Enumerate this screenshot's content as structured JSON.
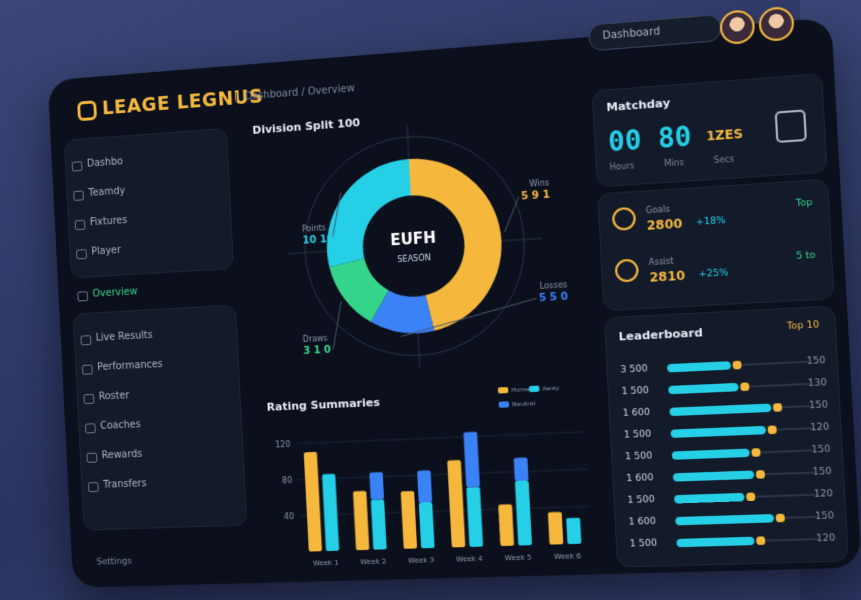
{
  "header": {
    "logo": "LEAGE LEGNUS",
    "breadcrumb": "Dashboard / Overview",
    "search": "Dashboard"
  },
  "sidebar": {
    "items": [
      "Dashbo",
      "Teamdy",
      "Fixtures",
      "Player",
      "Overview",
      "Live Results",
      "Performances",
      "Roster",
      "Coaches",
      "Rewards",
      "Transfers"
    ],
    "footer": "Settings"
  },
  "donut": {
    "title": "Division Split 100",
    "center": "EUFH",
    "center_sub": "SEASON",
    "values": [
      47,
      12,
      13,
      28
    ],
    "colors": [
      "#f5b83d",
      "#3b82f6",
      "#34d58a",
      "#25cfe6"
    ],
    "callouts": [
      "5 9 1",
      "5 5 0",
      "3 1 0",
      "10 10"
    ],
    "callout_captions": [
      "Wins",
      "Losses",
      "Draws",
      "Points"
    ]
  },
  "bars": {
    "title": "Rating Summaries",
    "categories": [
      "Week 1",
      "Week 2",
      "Week 3",
      "Week 4",
      "Week 5",
      "Week 6"
    ],
    "series": [
      {
        "name": "Home",
        "color": "#f5b83d",
        "values": [
          110,
          65,
          63,
          95,
          45,
          35
        ]
      },
      {
        "name": "Away",
        "color": "#25cfe6",
        "values": [
          85,
          55,
          50,
          65,
          70,
          28
        ]
      },
      {
        "name": "Neutral",
        "color": "#3b82f6",
        "values": [
          0,
          30,
          35,
          60,
          25,
          0
        ]
      }
    ],
    "ylim": [
      0,
      140
    ],
    "yticks": [
      40,
      80,
      120
    ]
  },
  "timer": {
    "title": "Matchday",
    "time": "00 80",
    "unit": "1ZES",
    "labels": [
      "Hours",
      "Mins",
      "Secs"
    ]
  },
  "stats": [
    {
      "label": "Goals",
      "value": "2800",
      "delta": "+18%",
      "side": "Top"
    },
    {
      "label": "Assist",
      "value": "2810",
      "delta": "+25%",
      "side": "5 to"
    }
  ],
  "leaderboard": {
    "title": "Leaderboard",
    "filter": "Top 10",
    "xlim": [
      0,
      100
    ],
    "rows": [
      {
        "label": "3 500",
        "value": 45,
        "max": "150"
      },
      {
        "label": "1 500",
        "value": 50,
        "max": "130"
      },
      {
        "label": "1 600",
        "value": 72,
        "max": "150"
      },
      {
        "label": "1 500",
        "value": 68,
        "max": "120"
      },
      {
        "label": "1 500",
        "value": 55,
        "max": "150"
      },
      {
        "label": "1 600",
        "value": 58,
        "max": "150"
      },
      {
        "label": "1 500",
        "value": 50,
        "max": "120"
      },
      {
        "label": "1 600",
        "value": 70,
        "max": "150"
      },
      {
        "label": "1 500",
        "value": 55,
        "max": "120"
      }
    ]
  }
}
